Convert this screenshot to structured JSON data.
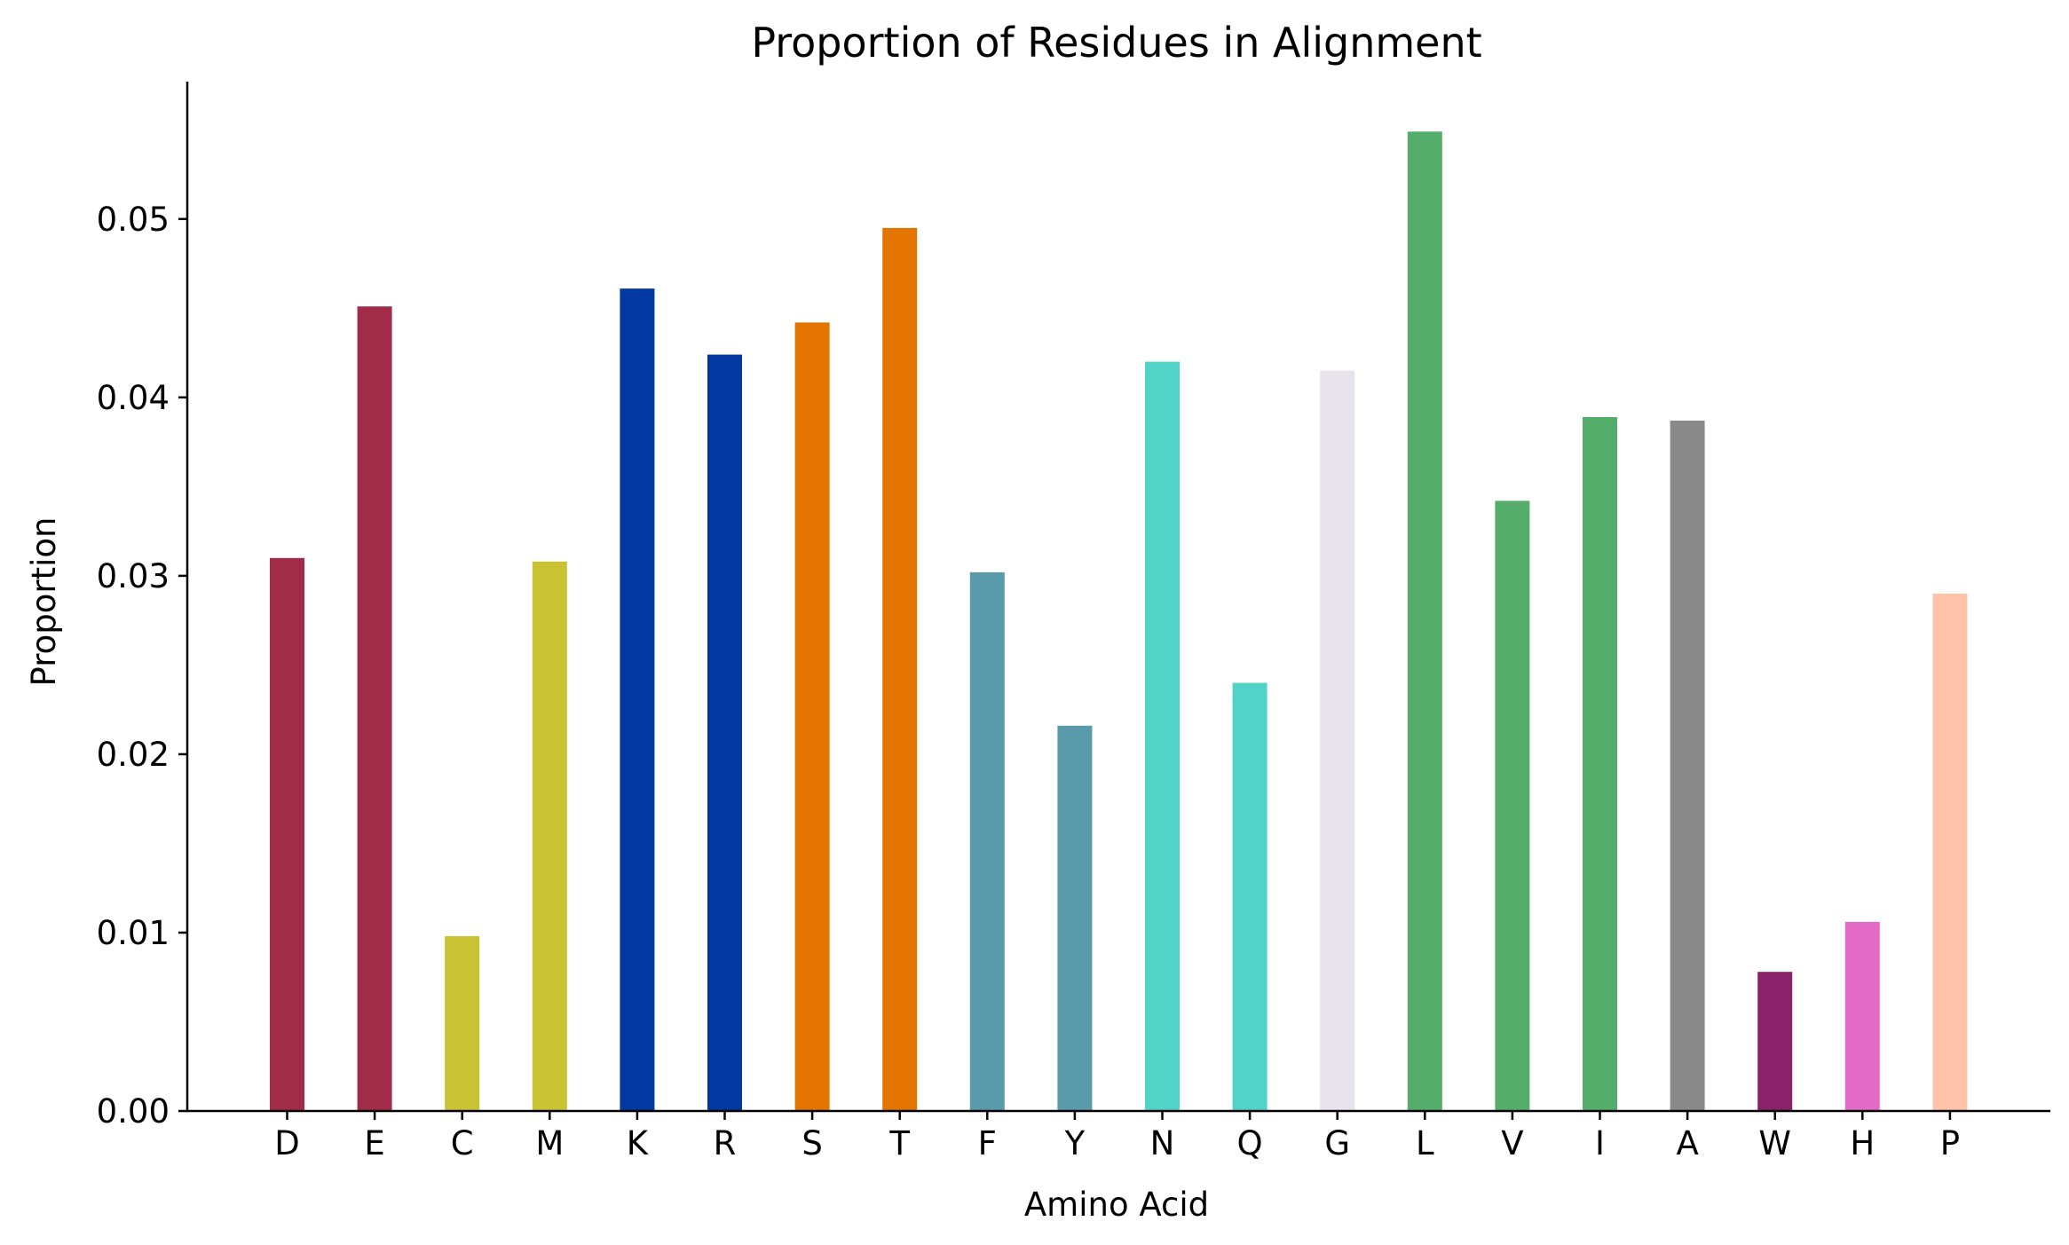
{
  "chart_data": {
    "type": "bar",
    "title": "Proportion of Residues in Alignment",
    "xlabel": "Amino Acid",
    "ylabel": "Proportion",
    "ylim": [
      0,
      0.0577
    ],
    "yticks": [
      "0.00",
      "0.01",
      "0.02",
      "0.03",
      "0.04",
      "0.05"
    ],
    "grid": false,
    "categories": [
      "D",
      "E",
      "C",
      "M",
      "K",
      "R",
      "S",
      "T",
      "F",
      "Y",
      "N",
      "Q",
      "G",
      "L",
      "V",
      "I",
      "A",
      "W",
      "H",
      "P"
    ],
    "values": [
      0.031,
      0.0451,
      0.0098,
      0.0308,
      0.0461,
      0.0424,
      0.0442,
      0.0495,
      0.0302,
      0.0216,
      0.042,
      0.024,
      0.0415,
      0.0549,
      0.0342,
      0.0389,
      0.0387,
      0.0078,
      0.0106,
      0.029
    ],
    "colors": [
      "#a32b4a",
      "#a32b4a",
      "#c9c232",
      "#c9c232",
      "#0338a0",
      "#0338a0",
      "#e37400",
      "#e37400",
      "#599aab",
      "#599aab",
      "#51d3c8",
      "#51d3c8",
      "#e8e2ea",
      "#55ad6c",
      "#55ad6c",
      "#55ad6c",
      "#898989",
      "#89226a",
      "#e46ac8",
      "#fec3a8"
    ]
  }
}
